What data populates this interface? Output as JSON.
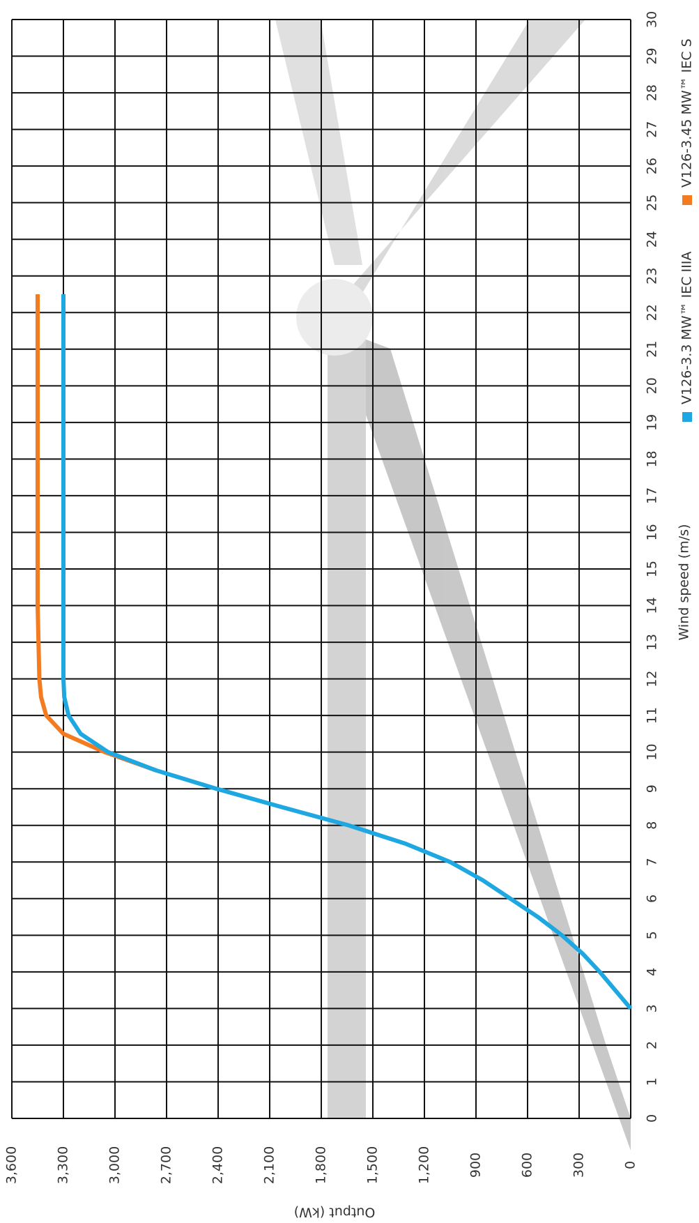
{
  "chart_data": {
    "type": "line",
    "x_label": "Wind speed (m/s)",
    "y_label": "Output (kW)",
    "x": [
      3,
      3.5,
      4,
      4.5,
      5,
      5.5,
      6,
      6.5,
      7,
      7.5,
      8,
      8.5,
      9,
      9.5,
      10,
      10.5,
      11,
      11.5,
      12,
      13,
      14,
      15,
      16,
      17,
      18,
      19,
      20,
      21,
      22,
      22.5
    ],
    "series": [
      {
        "name": "V126-3.3 MW™ IEC IIIA",
        "color": "#1ea7e1",
        "values": [
          0,
          90,
          180,
          280,
          400,
          540,
          700,
          860,
          1050,
          1310,
          1640,
          2030,
          2410,
          2760,
          3040,
          3200,
          3270,
          3295,
          3300,
          3300,
          3300,
          3300,
          3300,
          3300,
          3300,
          3300,
          3300,
          3300,
          3300,
          3300
        ]
      },
      {
        "name": "V126-3.45 MW™ IEC S",
        "color": "#f47b20",
        "values": [
          null,
          null,
          null,
          null,
          null,
          null,
          null,
          null,
          null,
          null,
          null,
          null,
          null,
          2760,
          3060,
          3300,
          3400,
          3430,
          3440,
          3445,
          3450,
          3450,
          3450,
          3450,
          3450,
          3450,
          3450,
          3450,
          3450,
          3450
        ]
      }
    ],
    "xlim": [
      0,
      30
    ],
    "xticks": [
      0,
      1,
      2,
      3,
      4,
      5,
      6,
      7,
      8,
      9,
      10,
      11,
      12,
      13,
      14,
      15,
      16,
      17,
      18,
      19,
      20,
      21,
      22,
      23,
      24,
      25,
      26,
      27,
      28,
      29,
      30
    ],
    "ylim": [
      0,
      3600
    ],
    "yticks": [
      0,
      300,
      600,
      900,
      {
        "value": 1200,
        "label": "1,200"
      },
      {
        "value": 1500,
        "label": "1,500"
      },
      {
        "value": 1800,
        "label": "1,800"
      },
      {
        "value": 2100,
        "label": "2,100"
      },
      {
        "value": 2400,
        "label": "2,400"
      },
      {
        "value": 2700,
        "label": "2,700"
      },
      {
        "value": 3000,
        "label": "3,000"
      },
      {
        "value": 3300,
        "label": "3,300"
      },
      {
        "value": 3600,
        "label": "3,600"
      }
    ],
    "grid": true,
    "rotated": true
  }
}
